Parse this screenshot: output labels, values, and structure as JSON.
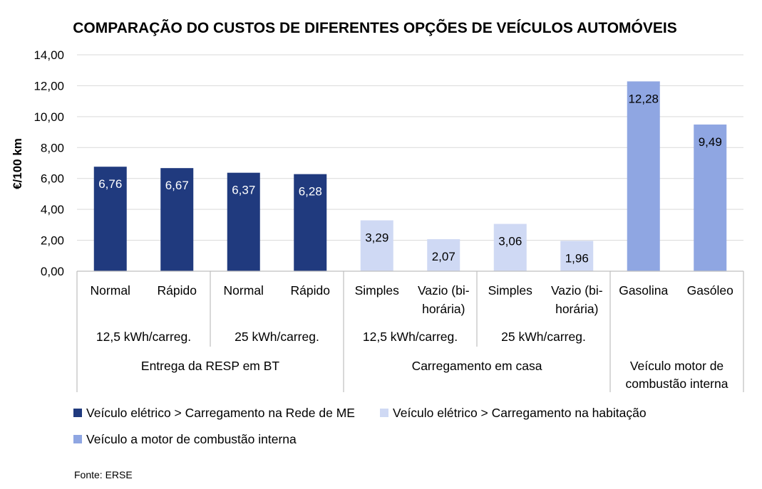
{
  "chart_data": {
    "type": "bar",
    "title": "COMPARAÇÃO DO CUSTOS DE DIFERENTES OPÇÕES DE VEÍCULOS AUTOMÓVEIS",
    "ylabel": "€/100 km",
    "ylim": [
      0,
      14
    ],
    "yticks": [
      "0,00",
      "2,00",
      "4,00",
      "6,00",
      "8,00",
      "10,00",
      "12,00",
      "14,00"
    ],
    "grid": true,
    "legend_position": "bottom",
    "bars": [
      {
        "label": [
          "Normal"
        ],
        "value": 6.76,
        "display": "6,76",
        "series": 0
      },
      {
        "label": [
          "Rápido"
        ],
        "value": 6.67,
        "display": "6,67",
        "series": 0
      },
      {
        "label": [
          "Normal"
        ],
        "value": 6.37,
        "display": "6,37",
        "series": 0
      },
      {
        "label": [
          "Rápido"
        ],
        "value": 6.28,
        "display": "6,28",
        "series": 0
      },
      {
        "label": [
          "Simples"
        ],
        "value": 3.29,
        "display": "3,29",
        "series": 1
      },
      {
        "label": [
          "Vazio (bi-",
          "horária)"
        ],
        "value": 2.07,
        "display": "2,07",
        "series": 1
      },
      {
        "label": [
          "Simples"
        ],
        "value": 3.06,
        "display": "3,06",
        "series": 1
      },
      {
        "label": [
          "Vazio (bi-",
          "horária)"
        ],
        "value": 1.96,
        "display": "1,96",
        "series": 1
      },
      {
        "label": [
          "Gasolina"
        ],
        "value": 12.28,
        "display": "12,28",
        "series": 2
      },
      {
        "label": [
          "Gasóleo"
        ],
        "value": 9.49,
        "display": "9,49",
        "series": 2
      }
    ],
    "subgroups": [
      {
        "label": "12,5 kWh/carreg.",
        "start": 0,
        "end": 1
      },
      {
        "label": "25 kWh/carreg.",
        "start": 2,
        "end": 3
      },
      {
        "label": "12,5 kWh/carreg.",
        "start": 4,
        "end": 5
      },
      {
        "label": "25 kWh/carreg.",
        "start": 6,
        "end": 7
      }
    ],
    "groups": [
      {
        "label": [
          "Entrega da RESP em BT"
        ],
        "start": 0,
        "end": 3
      },
      {
        "label": [
          "Carregamento em casa"
        ],
        "start": 4,
        "end": 7
      },
      {
        "label": [
          "Veículo motor de",
          "combustão interna"
        ],
        "start": 8,
        "end": 9
      }
    ],
    "series": [
      {
        "name": "Veículo elétrico > Carregamento na Rede de ME",
        "color": "#203a7e",
        "label_color": "#ffffff"
      },
      {
        "name": "Veículo elétrico > Carregamento na habitação",
        "color": "#cfd9f4",
        "label_color": "#000000"
      },
      {
        "name": "Veículo a motor de combustão interna",
        "color": "#8fa6e2",
        "label_color": "#000000"
      }
    ]
  },
  "source": "Fonte: ERSE"
}
